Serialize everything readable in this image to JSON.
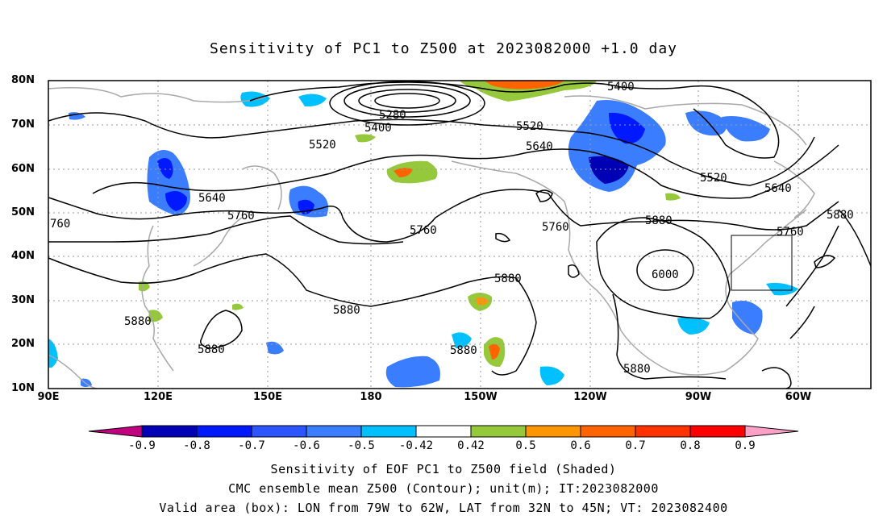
{
  "title": "Sensitivity of PC1 to Z500 at 2023082000 +1.0 day",
  "latitude_labels": [
    "80N",
    "70N",
    "60N",
    "50N",
    "40N",
    "30N",
    "20N",
    "10N"
  ],
  "longitude_labels": [
    "90E",
    "120E",
    "150E",
    "180",
    "150W",
    "120W",
    "90W",
    "60W"
  ],
  "contour_labels": [
    "5400",
    "5280",
    "5400",
    "5520",
    "5520",
    "5640",
    "5640",
    "5760",
    "5760",
    "5760",
    "5760",
    "5880",
    "5880",
    "5880",
    "5880",
    "5880",
    "5880",
    "6000",
    "5640",
    "5520",
    "5400",
    "5760",
    "5880",
    "760"
  ],
  "colorbar": {
    "ticks": [
      "-0.9",
      "-0.8",
      "-0.7",
      "-0.6",
      "-0.5",
      "-0.42",
      "0.42",
      "0.5",
      "0.6",
      "0.7",
      "0.8",
      "0.9"
    ],
    "colors": [
      "#c0007f",
      "#0000b4",
      "#0019ff",
      "#2d55ff",
      "#3b7dff",
      "#00c0ff",
      "#ffffff",
      "#96c83c",
      "#ff9600",
      "#ff6400",
      "#ff3200",
      "#ff0000",
      "#ffa0c8"
    ]
  },
  "captions": {
    "line1": "Sensitivity of EOF PC1 to Z500 field (Shaded)",
    "line2": "CMC ensemble mean Z500 (Contour); unit(m); IT:2023082000",
    "line3": "Valid area (box): LON from 79W to 62W, LAT from 32N to 45N; VT: 2023082400"
  },
  "valid_area": {
    "lon_from": "79W",
    "lon_to": "62W",
    "lat_from": "32N",
    "lat_to": "45N"
  }
}
